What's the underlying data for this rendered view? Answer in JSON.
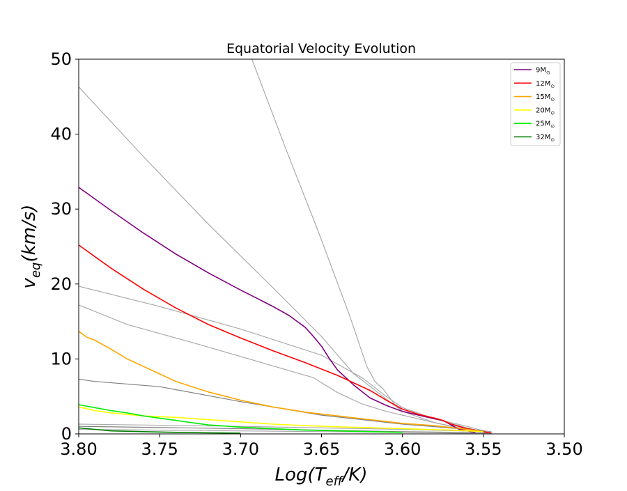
{
  "chart_data": {
    "type": "line",
    "title": "Equatorial Velocity Evolution",
    "xlabel": {
      "main": "Log(T",
      "sub": "eff",
      "tail": "/K)"
    },
    "ylabel": {
      "main": "v",
      "sub": "eq",
      "tail": "(km/s)"
    },
    "xlim": [
      3.8,
      3.5
    ],
    "ylim": [
      0,
      50
    ],
    "x_ticks": [
      {
        "v": 3.8,
        "label": "3.80"
      },
      {
        "v": 3.75,
        "label": "3.75"
      },
      {
        "v": 3.7,
        "label": "3.70"
      },
      {
        "v": 3.65,
        "label": "3.65"
      },
      {
        "v": 3.6,
        "label": "3.60"
      },
      {
        "v": 3.55,
        "label": "3.55"
      },
      {
        "v": 3.5,
        "label": "3.50"
      }
    ],
    "y_ticks": [
      {
        "v": 0,
        "label": "0"
      },
      {
        "v": 10,
        "label": "10"
      },
      {
        "v": 20,
        "label": "20"
      },
      {
        "v": 30,
        "label": "30"
      },
      {
        "v": 40,
        "label": "40"
      },
      {
        "v": 50,
        "label": "50"
      }
    ],
    "grid": false,
    "legend_position": "top-right",
    "gray_tracks": [
      {
        "color": "#aaaaaa",
        "points": [
          [
            3.693,
            50
          ],
          [
            3.672,
            38
          ],
          [
            3.652,
            27
          ],
          [
            3.633,
            16
          ],
          [
            3.622,
            9
          ],
          [
            3.617,
            7
          ],
          [
            3.612,
            6
          ],
          [
            3.605,
            4
          ],
          [
            3.6,
            3
          ],
          [
            3.58,
            2
          ],
          [
            3.56,
            1
          ],
          [
            3.548,
            0.3
          ]
        ]
      },
      {
        "color": "#aaaaaa",
        "points": [
          [
            3.8,
            46.3
          ],
          [
            3.76,
            37
          ],
          [
            3.72,
            28
          ],
          [
            3.68,
            19.5
          ],
          [
            3.65,
            13
          ],
          [
            3.63,
            8
          ],
          [
            3.615,
            5.5
          ],
          [
            3.6,
            3
          ],
          [
            3.58,
            1.5
          ],
          [
            3.56,
            0.6
          ],
          [
            3.548,
            0.3
          ]
        ]
      },
      {
        "color": "#aaaaaa",
        "points": [
          [
            3.8,
            19.7
          ],
          [
            3.75,
            17
          ],
          [
            3.7,
            14
          ],
          [
            3.65,
            10.5
          ],
          [
            3.625,
            7.5
          ],
          [
            3.61,
            5
          ],
          [
            3.6,
            3.5
          ],
          [
            3.58,
            2
          ],
          [
            3.56,
            0.8
          ],
          [
            3.55,
            0.3
          ]
        ]
      },
      {
        "color": "#aaaaaa",
        "points": [
          [
            3.8,
            17.2
          ],
          [
            3.77,
            14.6
          ],
          [
            3.73,
            12.2
          ],
          [
            3.69,
            9.7
          ],
          [
            3.655,
            7.5
          ],
          [
            3.64,
            5.5
          ],
          [
            3.625,
            4
          ],
          [
            3.61,
            3
          ],
          [
            3.59,
            2
          ],
          [
            3.57,
            1
          ],
          [
            3.55,
            0.3
          ]
        ]
      },
      {
        "color": "#808080",
        "points": [
          [
            3.8,
            7.3
          ],
          [
            3.79,
            7.0
          ],
          [
            3.75,
            6.3
          ],
          [
            3.7,
            4.3
          ],
          [
            3.65,
            2.5
          ],
          [
            3.6,
            1.3
          ],
          [
            3.56,
            0.6
          ],
          [
            3.545,
            0.3
          ]
        ]
      },
      {
        "color": "#aaaaaa",
        "points": [
          [
            3.8,
            1.3
          ],
          [
            3.7,
            1.0
          ],
          [
            3.6,
            0.6
          ],
          [
            3.545,
            0.3
          ]
        ]
      },
      {
        "color": "#808080",
        "points": [
          [
            3.8,
            1.0
          ],
          [
            3.7,
            0.7
          ],
          [
            3.65,
            0.5
          ],
          [
            3.6,
            0.3
          ],
          [
            3.56,
            0.2
          ],
          [
            3.545,
            0.1
          ]
        ]
      },
      {
        "color": "#aaaaaa",
        "points": [
          [
            3.8,
            0.6
          ],
          [
            3.7,
            0.4
          ],
          [
            3.6,
            0.2
          ],
          [
            3.545,
            0.05
          ]
        ]
      }
    ],
    "series": [
      {
        "name": "9M",
        "sub": "⊙",
        "color": "#800080",
        "points": [
          [
            3.8,
            32.9
          ],
          [
            3.78,
            29.8
          ],
          [
            3.76,
            26.8
          ],
          [
            3.74,
            24
          ],
          [
            3.72,
            21.5
          ],
          [
            3.7,
            19.2
          ],
          [
            3.69,
            18.1
          ],
          [
            3.68,
            17
          ],
          [
            3.67,
            15.8
          ],
          [
            3.66,
            14.2
          ],
          [
            3.655,
            13
          ],
          [
            3.65,
            11.7
          ],
          [
            3.645,
            10
          ],
          [
            3.64,
            8.5
          ],
          [
            3.63,
            6.5
          ],
          [
            3.62,
            4.8
          ],
          [
            3.61,
            3.8
          ],
          [
            3.6,
            3.0
          ],
          [
            3.59,
            2.5
          ],
          [
            3.58,
            2.0
          ],
          [
            3.575,
            1.8
          ],
          [
            3.57,
            1.2
          ],
          [
            3.565,
            0.6
          ],
          [
            3.555,
            0.2
          ]
        ]
      },
      {
        "name": "12M",
        "sub": "⊙",
        "color": "#ff0000",
        "points": [
          [
            3.8,
            25.2
          ],
          [
            3.78,
            22.1
          ],
          [
            3.76,
            19.3
          ],
          [
            3.74,
            16.8
          ],
          [
            3.72,
            14.6
          ],
          [
            3.7,
            12.8
          ],
          [
            3.68,
            11.1
          ],
          [
            3.66,
            9.5
          ],
          [
            3.64,
            7.8
          ],
          [
            3.62,
            5.8
          ],
          [
            3.61,
            4.5
          ],
          [
            3.6,
            3.3
          ],
          [
            3.59,
            2.6
          ],
          [
            3.58,
            2.1
          ],
          [
            3.575,
            1.8
          ],
          [
            3.57,
            1.3
          ],
          [
            3.56,
            0.7
          ],
          [
            3.55,
            0.3
          ],
          [
            3.545,
            0.1
          ]
        ]
      },
      {
        "name": "15M",
        "sub": "⊙",
        "color": "#ffa500",
        "points": [
          [
            3.8,
            13.7
          ],
          [
            3.795,
            12.9
          ],
          [
            3.79,
            12.5
          ],
          [
            3.78,
            11.3
          ],
          [
            3.77,
            10.0
          ],
          [
            3.76,
            9.0
          ],
          [
            3.75,
            8.0
          ],
          [
            3.74,
            7.0
          ],
          [
            3.73,
            6.3
          ],
          [
            3.72,
            5.6
          ],
          [
            3.7,
            4.5
          ],
          [
            3.68,
            3.6
          ],
          [
            3.66,
            2.9
          ],
          [
            3.64,
            2.4
          ],
          [
            3.62,
            1.9
          ],
          [
            3.6,
            1.4
          ],
          [
            3.58,
            1.1
          ],
          [
            3.56,
            0.6
          ],
          [
            3.55,
            0.3
          ]
        ]
      },
      {
        "name": "20M",
        "sub": "⊙",
        "color": "#ffff00",
        "points": [
          [
            3.8,
            3.6
          ],
          [
            3.79,
            3.1
          ],
          [
            3.78,
            2.8
          ],
          [
            3.76,
            2.4
          ],
          [
            3.74,
            2.2
          ],
          [
            3.72,
            1.9
          ],
          [
            3.7,
            1.6
          ],
          [
            3.68,
            1.3
          ],
          [
            3.66,
            1.1
          ],
          [
            3.64,
            0.95
          ],
          [
            3.6,
            0.7
          ],
          [
            3.57,
            0.5
          ],
          [
            3.55,
            0.3
          ]
        ]
      },
      {
        "name": "25M",
        "sub": "⊙",
        "color": "#00ee00",
        "points": [
          [
            3.8,
            3.9
          ],
          [
            3.79,
            3.5
          ],
          [
            3.78,
            3.1
          ],
          [
            3.77,
            2.8
          ],
          [
            3.76,
            2.4
          ],
          [
            3.75,
            2.1
          ],
          [
            3.74,
            1.8
          ],
          [
            3.73,
            1.5
          ],
          [
            3.72,
            1.2
          ],
          [
            3.7,
            0.9
          ],
          [
            3.68,
            0.7
          ],
          [
            3.66,
            0.5
          ],
          [
            3.64,
            0.4
          ],
          [
            3.62,
            0.3
          ],
          [
            3.6,
            0.2
          ]
        ]
      },
      {
        "name": "32M",
        "sub": "⊙",
        "color": "#008000",
        "points": [
          [
            3.8,
            0.8
          ],
          [
            3.79,
            0.6
          ],
          [
            3.78,
            0.4
          ],
          [
            3.76,
            0.3
          ],
          [
            3.74,
            0.2
          ],
          [
            3.72,
            0.15
          ],
          [
            3.7,
            0.1
          ]
        ]
      }
    ]
  }
}
